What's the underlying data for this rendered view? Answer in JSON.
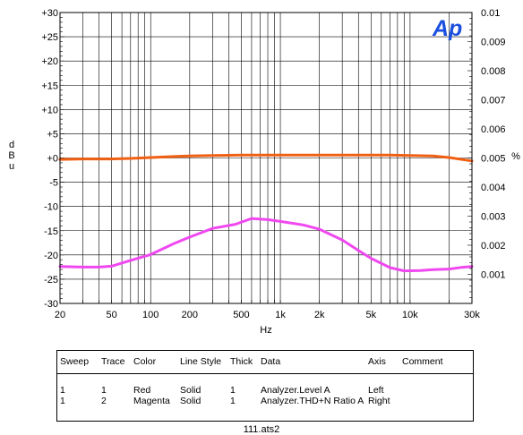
{
  "logo_text": "Ap",
  "chart_data": {
    "type": "line",
    "x_scale": "log",
    "xlabel": "Hz",
    "xlim": [
      20,
      30000
    ],
    "x_ticks": [
      20,
      50,
      100,
      200,
      500,
      1000,
      2000,
      5000,
      10000,
      30000
    ],
    "x_tick_labels": [
      "20",
      "50",
      "100",
      "200",
      "500",
      "1k",
      "2k",
      "5k",
      "10k",
      "30k"
    ],
    "ylabel": "d B u",
    "ylim": [
      -30,
      30
    ],
    "y_ticks": [
      30,
      25,
      20,
      15,
      10,
      5,
      0,
      -5,
      -10,
      -15,
      -20,
      -25,
      -30
    ],
    "y_tick_labels": [
      "+30",
      "+25",
      "+20",
      "+15",
      "+10",
      "+5",
      "+0",
      "-5",
      "-10",
      "-15",
      "-20",
      "-25",
      "-30"
    ],
    "y2label": "%",
    "y2lim": [
      0,
      0.01
    ],
    "y2_ticks": [
      0.01,
      0.009,
      0.008,
      0.007,
      0.006,
      0.005,
      0.004,
      0.003,
      0.002,
      0.001
    ],
    "y2_tick_labels": [
      "0.01",
      "0.009",
      "0.008",
      "0.007",
      "0.006",
      "0.005",
      "0.004",
      "0.003",
      "0.002",
      "0.001"
    ],
    "grid": true,
    "series": [
      {
        "name": "Analyzer.Level A",
        "axis": "left",
        "color": "#f06014",
        "x": [
          20,
          30,
          50,
          70,
          100,
          150,
          200,
          300,
          500,
          1000,
          2000,
          5000,
          7000,
          10000,
          15000,
          20000,
          30000
        ],
        "y": [
          -0.3,
          -0.2,
          -0.2,
          -0.1,
          0.1,
          0.3,
          0.4,
          0.5,
          0.6,
          0.6,
          0.6,
          0.6,
          0.6,
          0.5,
          0.4,
          0.1,
          -0.6
        ]
      },
      {
        "name": "Analyzer.THD+N Ratio A",
        "axis": "right",
        "color": "#f048f0",
        "x": [
          20,
          30,
          40,
          50,
          70,
          100,
          150,
          200,
          300,
          450,
          600,
          800,
          1000,
          1500,
          2000,
          3000,
          4000,
          5000,
          7000,
          9000,
          12000,
          15000,
          20000,
          25000,
          30000
        ],
        "y": [
          0.00127,
          0.00125,
          0.00125,
          0.00128,
          0.00148,
          0.00168,
          0.00205,
          0.00228,
          0.00258,
          0.00272,
          0.00292,
          0.00288,
          0.00282,
          0.0027,
          0.00255,
          0.00218,
          0.00182,
          0.00155,
          0.00123,
          0.00112,
          0.00113,
          0.00116,
          0.00118,
          0.00124,
          0.00127
        ]
      }
    ]
  },
  "legend": {
    "headers": {
      "sweep": "Sweep",
      "trace": "Trace",
      "color": "Color",
      "line_style": "Line Style",
      "thick": "Thick",
      "data": "Data",
      "axis": "Axis",
      "comment": "Comment"
    },
    "rows": [
      {
        "sweep": "1",
        "trace": "1",
        "color": "Red",
        "line_style": "Solid",
        "thick": "1",
        "data": "Analyzer.Level A",
        "axis": "Left",
        "comment": ""
      },
      {
        "sweep": "1",
        "trace": "2",
        "color": "Magenta",
        "line_style": "Solid",
        "thick": "1",
        "data": "Analyzer.THD+N Ratio A",
        "axis": "Right",
        "comment": ""
      }
    ]
  },
  "file_name": "111.ats2"
}
